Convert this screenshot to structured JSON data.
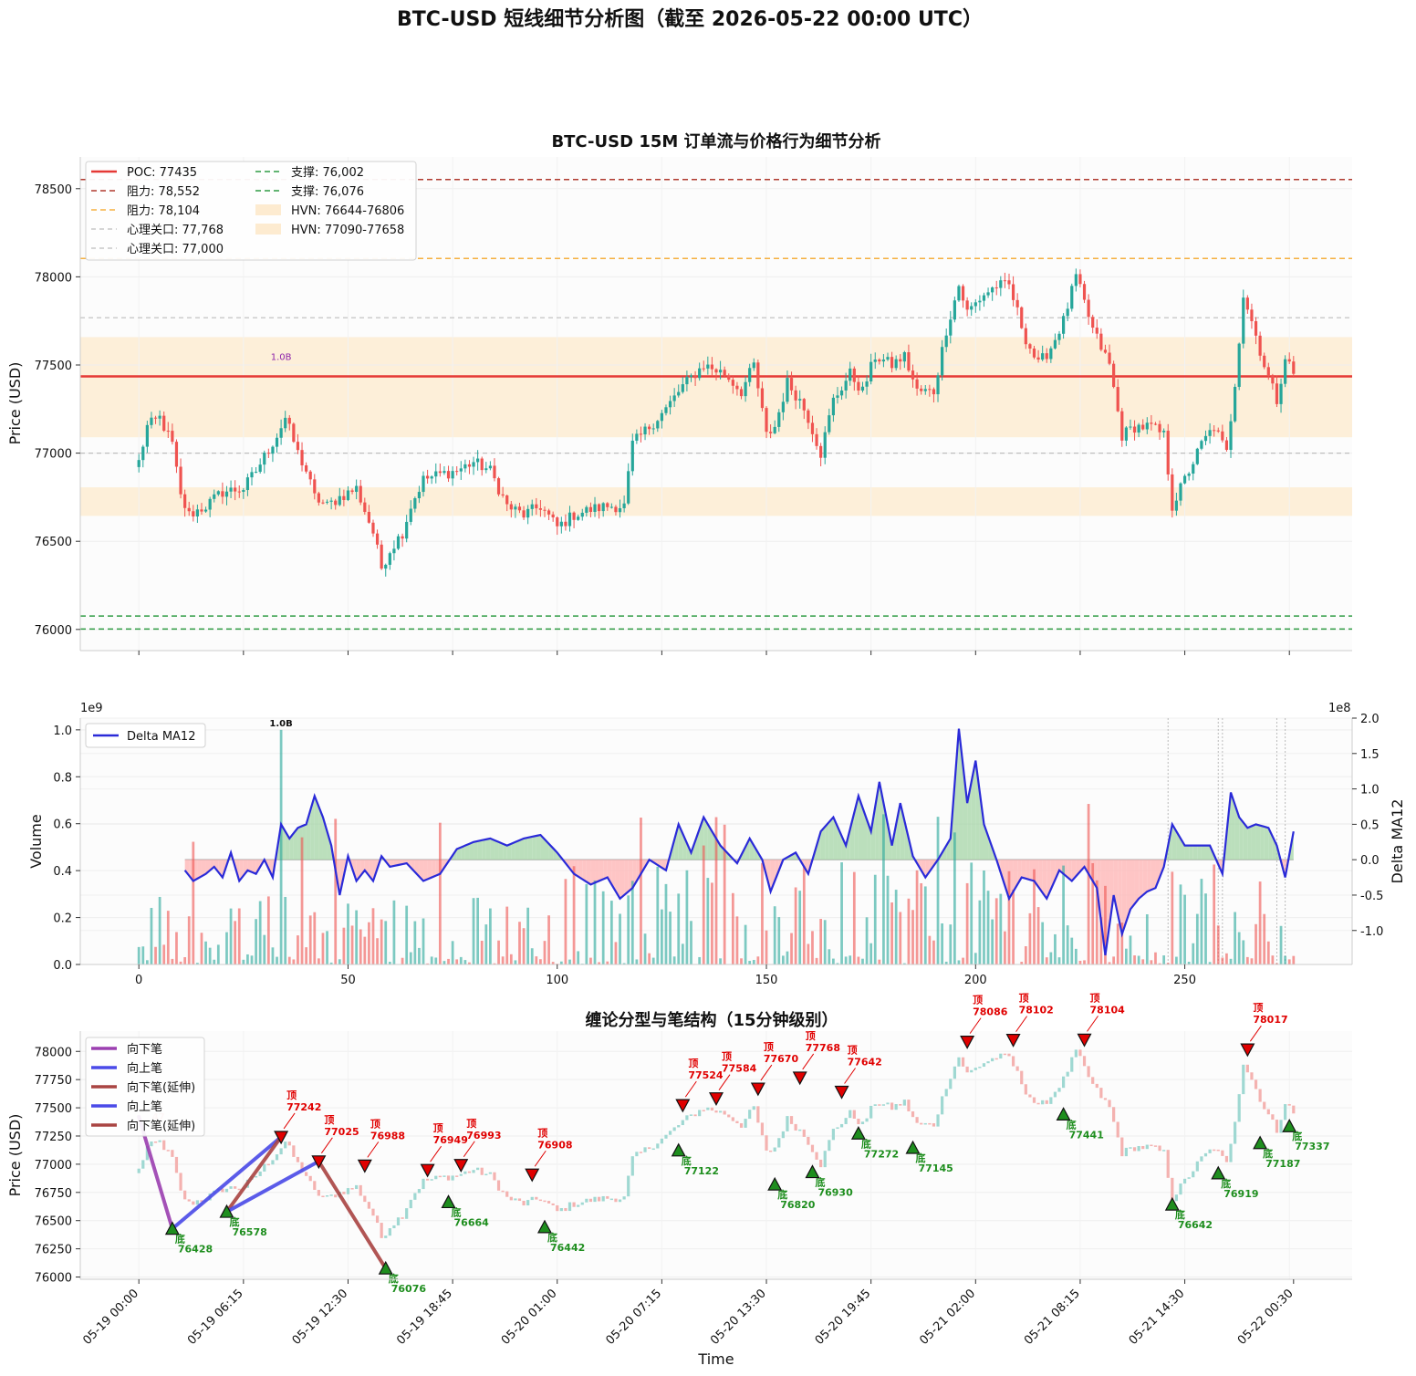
{
  "suptitle": "BTC-USD 短线细节分析图（截至 2026-05-22 00:00 UTC）",
  "colors": {
    "up": "#26a69a",
    "down": "#ef5350",
    "poc": "#e53935",
    "resistance_main": "#b03a2e",
    "resistance_minor": "#f5b041",
    "psych": "#bdbdbd",
    "support": "#2e9b43",
    "hvn": "#fdebd0",
    "delta_line": "#2a2ad8",
    "delta_pos_fill": "#a5d6a7",
    "delta_neg_fill": "#ffb3b3",
    "bi_down": "#9b3fb0",
    "bi_up": "#4a4ae8",
    "bi_down_ext": "#a94442",
    "top_marker": "#e00000",
    "bottom_marker": "#1e8e1e"
  },
  "panel1": {
    "title": "BTC-USD 15M 订单流与价格行为细节分析",
    "ylabel": "Price (USD)",
    "yticks": [
      "76000",
      "76500",
      "77000",
      "77500",
      "78000",
      "78500"
    ],
    "annotation": "1.0B",
    "legend_col1": [
      "POC: 77435",
      "阻力: 78,552",
      "阻力: 78,104",
      "心理关口: 77,768",
      "心理关口: 77,000"
    ],
    "legend_col2": [
      "支撑: 76,002",
      "支撑: 76,076",
      "HVN: 76644-76806",
      "HVN: 77090-77658"
    ]
  },
  "panel2": {
    "ylabel": "Volume",
    "ylabel_right": "Delta MA12",
    "offset_left": "1e9",
    "offset_right": "1e8",
    "yticks_left": [
      "0.0",
      "0.2",
      "0.4",
      "0.6",
      "0.8",
      "1.0"
    ],
    "yticks_right": [
      "-1.0",
      "-0.5",
      "0.0",
      "0.5",
      "1.0",
      "1.5",
      "2.0"
    ],
    "xticks": [
      "0",
      "50",
      "100",
      "150",
      "200",
      "250"
    ],
    "legend": "Delta MA12",
    "peak_label": "1.0B"
  },
  "panel3": {
    "title": "缠论分型与笔结构（15分钟级别）",
    "ylabel": "Price (USD)",
    "xlabel": "Time",
    "yticks": [
      "76000",
      "76250",
      "76500",
      "76750",
      "77000",
      "77250",
      "77500",
      "77750",
      "78000"
    ],
    "xticks": [
      "05-19 00:00",
      "05-19 06:15",
      "05-19 12:30",
      "05-19 18:45",
      "05-20 01:00",
      "05-20 07:15",
      "05-20 13:30",
      "05-20 19:45",
      "05-21 02:00",
      "05-21 08:15",
      "05-21 14:30",
      "05-22 00:30"
    ],
    "legend": [
      "向下笔",
      "向上笔",
      "向下笔(延伸)",
      "向上笔",
      "向下笔(延伸)"
    ],
    "top_label": "顶",
    "bottom_label": "底",
    "partial_label": "47"
  },
  "chart_data": [
    {
      "type": "candlestick",
      "title": "BTC-USD 15M 订单流与价格行为细节分析",
      "ylabel": "Price (USD)",
      "ylim": [
        75880,
        78680
      ],
      "xlim": [
        -14,
        290
      ],
      "levels": [
        {
          "name": "POC",
          "value": 77435
        },
        {
          "name": "阻力",
          "value": 78552
        },
        {
          "name": "阻力",
          "value": 78104
        },
        {
          "name": "心理关口",
          "value": 77768
        },
        {
          "name": "心理关口",
          "value": 77000
        },
        {
          "name": "支撑",
          "value": 76002
        },
        {
          "name": "支撑",
          "value": 76076
        }
      ],
      "hvn_zones": [
        [
          76644,
          76806
        ],
        [
          77090,
          77658
        ]
      ],
      "close_anchors": [
        [
          0,
          76950
        ],
        [
          2,
          77150
        ],
        [
          5,
          77200
        ],
        [
          8,
          77050
        ],
        [
          10,
          76750
        ],
        [
          12,
          76650
        ],
        [
          16,
          76700
        ],
        [
          20,
          76780
        ],
        [
          25,
          76800
        ],
        [
          28,
          76900
        ],
        [
          33,
          77100
        ],
        [
          35,
          77200
        ],
        [
          38,
          77000
        ],
        [
          40,
          76900
        ],
        [
          42,
          76750
        ],
        [
          45,
          76700
        ],
        [
          48,
          76750
        ],
        [
          52,
          76800
        ],
        [
          56,
          76550
        ],
        [
          58,
          76350
        ],
        [
          60,
          76450
        ],
        [
          63,
          76550
        ],
        [
          65,
          76700
        ],
        [
          68,
          76850
        ],
        [
          72,
          76880
        ],
        [
          76,
          76900
        ],
        [
          80,
          76950
        ],
        [
          84,
          76900
        ],
        [
          88,
          76700
        ],
        [
          92,
          76650
        ],
        [
          96,
          76700
        ],
        [
          100,
          76580
        ],
        [
          104,
          76650
        ],
        [
          108,
          76680
        ],
        [
          112,
          76700
        ],
        [
          116,
          76700
        ],
        [
          118,
          77050
        ],
        [
          122,
          77150
        ],
        [
          126,
          77250
        ],
        [
          130,
          77380
        ],
        [
          135,
          77500
        ],
        [
          140,
          77450
        ],
        [
          144,
          77350
        ],
        [
          147,
          77500
        ],
        [
          150,
          77100
        ],
        [
          152,
          77150
        ],
        [
          155,
          77400
        ],
        [
          158,
          77300
        ],
        [
          160,
          77200
        ],
        [
          163,
          77000
        ],
        [
          166,
          77300
        ],
        [
          170,
          77450
        ],
        [
          173,
          77350
        ],
        [
          176,
          77550
        ],
        [
          180,
          77500
        ],
        [
          183,
          77550
        ],
        [
          186,
          77350
        ],
        [
          190,
          77350
        ],
        [
          193,
          77700
        ],
        [
          196,
          77950
        ],
        [
          198,
          77800
        ],
        [
          202,
          77900
        ],
        [
          205,
          77950
        ],
        [
          208,
          77950
        ],
        [
          212,
          77650
        ],
        [
          215,
          77500
        ],
        [
          218,
          77600
        ],
        [
          221,
          77750
        ],
        [
          224,
          78000
        ],
        [
          228,
          77700
        ],
        [
          232,
          77500
        ],
        [
          235,
          77100
        ],
        [
          238,
          77150
        ],
        [
          242,
          77150
        ],
        [
          245,
          77100
        ],
        [
          247,
          76700
        ],
        [
          250,
          76850
        ],
        [
          254,
          77050
        ],
        [
          257,
          77150
        ],
        [
          260,
          77000
        ],
        [
          262,
          77400
        ],
        [
          264,
          77900
        ],
        [
          266,
          77750
        ],
        [
          269,
          77500
        ],
        [
          272,
          77300
        ],
        [
          274,
          77550
        ],
        [
          276,
          77450
        ]
      ]
    },
    {
      "type": "bar",
      "ylabel": "Volume",
      "y2label": "Delta MA12",
      "ylim": [
        0,
        1.05
      ],
      "y2lim": [
        -1.48,
        2.0
      ],
      "xlim": [
        -14,
        290
      ],
      "peak": {
        "x": 34,
        "value": 1.0
      },
      "delta_anchors": [
        [
          11,
          -0.15
        ],
        [
          13,
          -0.3
        ],
        [
          16,
          -0.2
        ],
        [
          18,
          -0.1
        ],
        [
          20,
          -0.25
        ],
        [
          22,
          0.1
        ],
        [
          24,
          -0.3
        ],
        [
          26,
          -0.15
        ],
        [
          28,
          -0.2
        ],
        [
          30,
          0.0
        ],
        [
          32,
          -0.25
        ],
        [
          34,
          0.5
        ],
        [
          36,
          0.3
        ],
        [
          38,
          0.45
        ],
        [
          40,
          0.5
        ],
        [
          42,
          0.9
        ],
        [
          44,
          0.6
        ],
        [
          46,
          0.2
        ],
        [
          48,
          -0.5
        ],
        [
          50,
          0.05
        ],
        [
          52,
          -0.3
        ],
        [
          54,
          -0.15
        ],
        [
          56,
          -0.3
        ],
        [
          58,
          0.05
        ],
        [
          60,
          -0.1
        ],
        [
          64,
          -0.05
        ],
        [
          68,
          -0.3
        ],
        [
          72,
          -0.2
        ],
        [
          76,
          0.15
        ],
        [
          80,
          0.25
        ],
        [
          84,
          0.3
        ],
        [
          88,
          0.2
        ],
        [
          92,
          0.3
        ],
        [
          96,
          0.35
        ],
        [
          100,
          0.1
        ],
        [
          104,
          -0.2
        ],
        [
          108,
          -0.35
        ],
        [
          112,
          -0.25
        ],
        [
          115,
          -0.55
        ],
        [
          118,
          -0.4
        ],
        [
          122,
          0.0
        ],
        [
          126,
          -0.15
        ],
        [
          129,
          0.5
        ],
        [
          132,
          0.1
        ],
        [
          135,
          0.6
        ],
        [
          139,
          0.2
        ],
        [
          143,
          -0.05
        ],
        [
          146,
          0.3
        ],
        [
          149,
          0.0
        ],
        [
          151,
          -0.45
        ],
        [
          154,
          0.0
        ],
        [
          157,
          0.1
        ],
        [
          160,
          -0.2
        ],
        [
          163,
          0.4
        ],
        [
          166,
          0.6
        ],
        [
          169,
          0.2
        ],
        [
          172,
          0.9
        ],
        [
          175,
          0.4
        ],
        [
          177,
          1.1
        ],
        [
          180,
          0.2
        ],
        [
          182,
          0.8
        ],
        [
          185,
          0.05
        ],
        [
          188,
          -0.25
        ],
        [
          191,
          0.0
        ],
        [
          194,
          0.3
        ],
        [
          196,
          1.85
        ],
        [
          198,
          0.8
        ],
        [
          200,
          1.4
        ],
        [
          202,
          0.5
        ],
        [
          205,
          0.0
        ],
        [
          208,
          -0.55
        ],
        [
          211,
          -0.25
        ],
        [
          214,
          -0.3
        ],
        [
          217,
          -0.55
        ],
        [
          220,
          -0.15
        ],
        [
          223,
          -0.3
        ],
        [
          226,
          -0.1
        ],
        [
          229,
          -0.4
        ],
        [
          231,
          -1.35
        ],
        [
          233,
          -0.5
        ],
        [
          235,
          -1.05
        ],
        [
          237,
          -0.7
        ],
        [
          239,
          -0.55
        ],
        [
          241,
          -0.45
        ],
        [
          243,
          -0.4
        ],
        [
          245,
          -0.1
        ],
        [
          247,
          0.5
        ],
        [
          250,
          0.2
        ],
        [
          253,
          0.2
        ],
        [
          256,
          0.2
        ],
        [
          259,
          -0.2
        ],
        [
          261,
          0.95
        ],
        [
          263,
          0.6
        ],
        [
          265,
          0.45
        ],
        [
          267,
          0.5
        ],
        [
          270,
          0.45
        ],
        [
          272,
          0.2
        ],
        [
          274,
          -0.25
        ],
        [
          276,
          0.4
        ]
      ]
    },
    {
      "type": "line",
      "title": "缠论分型与笔结构（15分钟级别）",
      "xlabel": "Time",
      "ylabel": "Price (USD)",
      "ylim": [
        75980,
        78180
      ],
      "xlim": [
        -14,
        290
      ],
      "tops": [
        {
          "x": 34,
          "price": 77242
        },
        {
          "x": 43,
          "price": 77025
        },
        {
          "x": 54,
          "price": 76988
        },
        {
          "x": 69,
          "price": 76949
        },
        {
          "x": 77,
          "price": 76993
        },
        {
          "x": 94,
          "price": 76908
        },
        {
          "x": 130,
          "price": 77524
        },
        {
          "x": 138,
          "price": 77584
        },
        {
          "x": 148,
          "price": 77670
        },
        {
          "x": 158,
          "price": 77768
        },
        {
          "x": 168,
          "price": 77642
        },
        {
          "x": 198,
          "price": 78086
        },
        {
          "x": 209,
          "price": 78102
        },
        {
          "x": 226,
          "price": 78104
        },
        {
          "x": 265,
          "price": 78017
        }
      ],
      "bottoms": [
        {
          "x": 8,
          "price": 76428
        },
        {
          "x": 21,
          "price": 76578
        },
        {
          "x": 59,
          "price": 76076
        },
        {
          "x": 74,
          "price": 76664
        },
        {
          "x": 97,
          "price": 76442
        },
        {
          "x": 129,
          "price": 77122
        },
        {
          "x": 152,
          "price": 76820
        },
        {
          "x": 161,
          "price": 76930
        },
        {
          "x": 172,
          "price": 77272
        },
        {
          "x": 185,
          "price": 77145
        },
        {
          "x": 221,
          "price": 77441
        },
        {
          "x": 247,
          "price": 76642
        },
        {
          "x": 258,
          "price": 76919
        },
        {
          "x": 268,
          "price": 77187
        },
        {
          "x": 275,
          "price": 77337
        }
      ],
      "strokes": [
        {
          "name": "向下笔",
          "from": [
            0,
            77420
          ],
          "to": [
            8,
            76428
          ]
        },
        {
          "name": "向上笔",
          "from": [
            8,
            76428
          ],
          "to": [
            34,
            77242
          ]
        },
        {
          "name": "向下笔(延伸)",
          "from": [
            21,
            76578
          ],
          "to": [
            34,
            77242
          ]
        },
        {
          "name": "向上笔",
          "from": [
            21,
            76578
          ],
          "to": [
            43,
            77025
          ]
        },
        {
          "name": "向下笔(延伸)",
          "from": [
            43,
            77025
          ],
          "to": [
            59,
            76076
          ]
        }
      ]
    }
  ]
}
